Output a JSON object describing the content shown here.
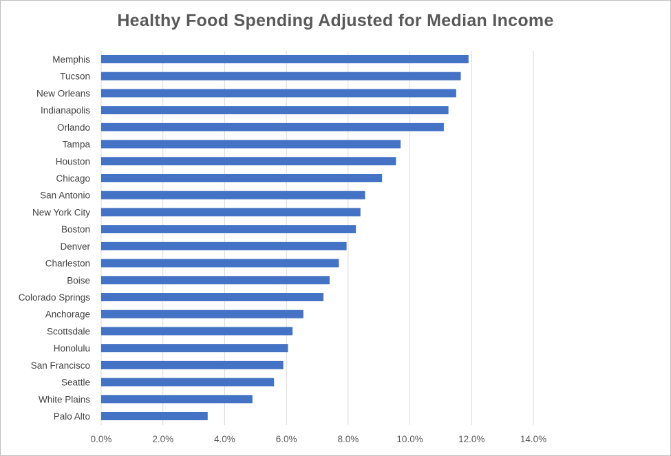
{
  "chart_data": {
    "type": "bar",
    "orientation": "horizontal",
    "title": "Healthy Food Spending Adjusted for Median Income",
    "xlabel": "",
    "ylabel": "",
    "categories": [
      "Memphis",
      "Tucson",
      "New Orleans",
      "Indianapolis",
      "Orlando",
      "Tampa",
      "Houston",
      "Chicago",
      "San Antonio",
      "New York City",
      "Boston",
      "Denver",
      "Charleston",
      "Boise",
      "Colorado Springs",
      "Anchorage",
      "Scottsdale",
      "Honolulu",
      "San Francisco",
      "Seattle",
      "White Plains",
      "Palo Alto"
    ],
    "values": [
      11.9,
      11.65,
      11.5,
      11.25,
      11.1,
      9.7,
      9.55,
      9.1,
      8.55,
      8.4,
      8.25,
      7.95,
      7.7,
      7.4,
      7.2,
      6.55,
      6.2,
      6.05,
      5.9,
      5.6,
      4.9,
      3.45
    ],
    "xlim": [
      0,
      14
    ],
    "xticks": [
      "0.0%",
      "2.0%",
      "4.0%",
      "6.0%",
      "8.0%",
      "10.0%",
      "12.0%",
      "14.0%"
    ],
    "grid": "vertical",
    "legend": "none",
    "bar_color": "#4472c4",
    "grid_color": "#d9d9d9"
  }
}
